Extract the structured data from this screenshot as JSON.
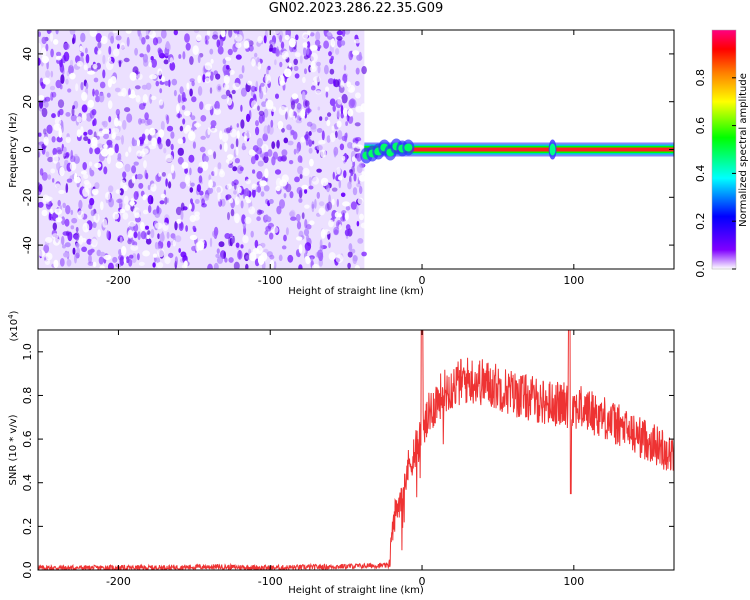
{
  "title": "GN02.2023.286.22.35.G09",
  "chart_data": [
    {
      "type": "heatmap",
      "xlabel": "Height of straight line (km)",
      "ylabel": "Frequency (Hz)",
      "xlim": [
        -253,
        166
      ],
      "ylim": [
        -50,
        50
      ],
      "xticks": [
        -200,
        -100,
        0,
        100
      ],
      "yticks": [
        -40,
        -20,
        0,
        20,
        40
      ],
      "noise_region_x": [
        -253,
        -38
      ],
      "signal_line_freq": 0,
      "signal_start_x": -38,
      "signal_spike_x": 86,
      "colorbar": {
        "label": "Normalized spectral amplitude",
        "ticks": [
          "0.0",
          "0.2",
          "0.4",
          "0.6",
          "0.8"
        ],
        "range": [
          0,
          1
        ],
        "colormap": [
          "#ffffff",
          "#8000ff",
          "#0000ff",
          "#00ffff",
          "#00ff00",
          "#ffff00",
          "#ff8000",
          "#ff0000",
          "#ff0080"
        ]
      }
    },
    {
      "type": "line",
      "xlabel": "Height of straight line (km)",
      "ylabel": "SNR (10 * v/v)",
      "yscale_label": "(x10",
      "yscale_exp": "4",
      "xlim": [
        -253,
        166
      ],
      "ylim": [
        0,
        1.1
      ],
      "xticks": [
        -200,
        -100,
        0,
        100
      ],
      "yticks": [
        "0.0",
        "0.2",
        "0.4",
        "0.6",
        "0.8",
        "1.0"
      ],
      "color": "#ee3333",
      "series": [
        {
          "x": [
            -253,
            -220,
            -180,
            -140,
            -100,
            -60,
            -30,
            -22,
            -18,
            -15,
            -12,
            -10,
            -5,
            0,
            5,
            10,
            15,
            20,
            25,
            30,
            35,
            40,
            50,
            60,
            70,
            80,
            90,
            100,
            110,
            120,
            130,
            140,
            150,
            160,
            166
          ],
          "values": [
            0.01,
            0.01,
            0.01,
            0.015,
            0.01,
            0.015,
            0.02,
            0.02,
            0.25,
            0.32,
            0.4,
            0.45,
            0.55,
            0.62,
            0.72,
            0.78,
            0.82,
            0.84,
            0.86,
            0.87,
            0.87,
            0.86,
            0.84,
            0.81,
            0.79,
            0.77,
            0.76,
            0.75,
            0.73,
            0.7,
            0.66,
            0.62,
            0.59,
            0.55,
            0.52
          ]
        }
      ]
    }
  ]
}
